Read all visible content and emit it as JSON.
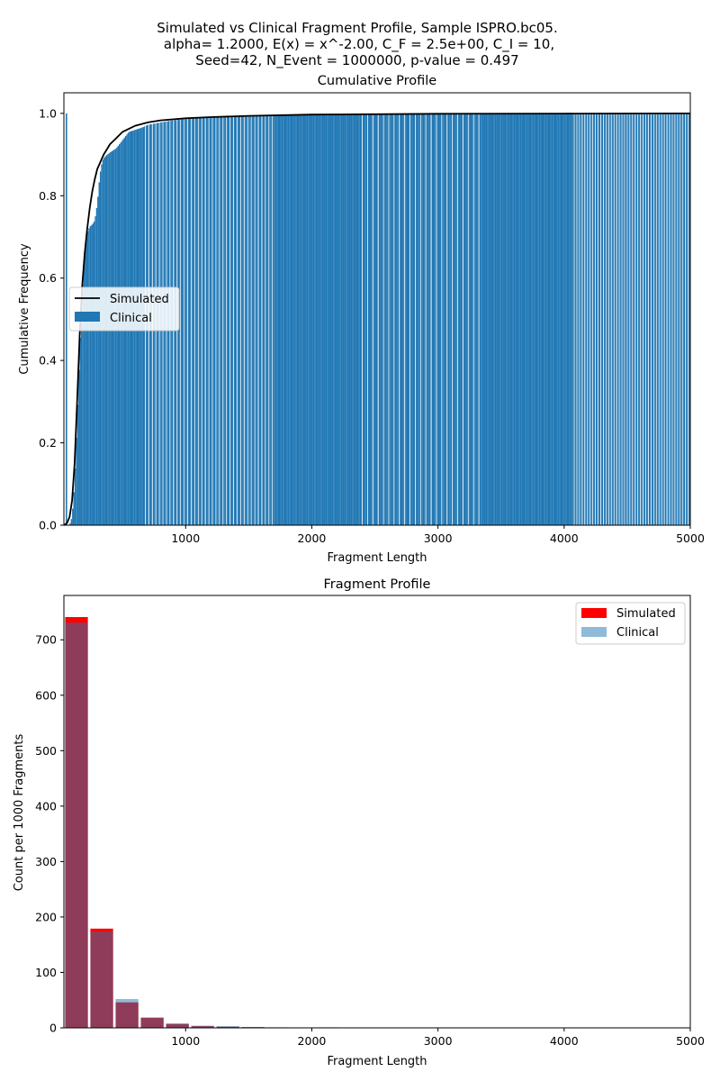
{
  "figure": {
    "suptitle": [
      "Simulated vs Clinical Fragment Profile, Sample ISPRO.bc05.",
      "alpha=  1.2000, E(x) = x^-2.00, C_F =  2.5e+00, C_I = 10,",
      "Seed=42, N_Event = 1000000, p-value = 0.497"
    ]
  },
  "colors": {
    "simulated_line": "#000000",
    "clinical_bar": "#1f77b4",
    "simulated_bar": "#ff0000",
    "clinical_bar_light": "#1f77b4"
  },
  "chart_data": [
    {
      "type": "bar",
      "title": "Cumulative Profile",
      "xlabel": "Fragment Length",
      "ylabel": "Cumulative Frequency",
      "xlim": [
        35,
        5000
      ],
      "ylim": [
        0,
        1.05
      ],
      "xticks": [
        "1000",
        "2000",
        "3000",
        "4000",
        "5000"
      ],
      "xtick_values": [
        1000,
        2000,
        3000,
        4000,
        5000
      ],
      "yticks": [
        "0.0",
        "0.2",
        "0.4",
        "0.6",
        "0.8",
        "1.0"
      ],
      "ytick_values": [
        0,
        0.2,
        0.4,
        0.6,
        0.8,
        1.0
      ],
      "legend": {
        "placement": "center-left",
        "entries": [
          "Simulated",
          "Clinical"
        ]
      },
      "series": [
        {
          "name": "Simulated",
          "kind": "line",
          "x": [
            35,
            60,
            80,
            100,
            120,
            140,
            160,
            180,
            200,
            220,
            240,
            260,
            280,
            300,
            350,
            400,
            450,
            500,
            600,
            700,
            800,
            1000,
            1200,
            1500,
            2000,
            3000,
            4000,
            5000
          ],
          "values": [
            0.0,
            0.005,
            0.02,
            0.06,
            0.15,
            0.3,
            0.46,
            0.58,
            0.66,
            0.72,
            0.77,
            0.81,
            0.84,
            0.865,
            0.9,
            0.925,
            0.94,
            0.955,
            0.97,
            0.978,
            0.983,
            0.988,
            0.991,
            0.994,
            0.997,
            0.999,
            0.9995,
            1.0
          ]
        },
        {
          "name": "Clinical",
          "kind": "bar",
          "x": [
            35,
            80,
            100,
            120,
            140,
            160,
            180,
            200,
            220,
            240,
            260,
            280,
            300,
            320,
            340,
            360,
            380,
            400,
            450,
            500,
            550,
            600,
            650,
            700,
            800,
            900,
            1000,
            1200,
            1500,
            2000,
            2500,
            3000,
            4000,
            4500,
            5000
          ],
          "values": [
            1.0,
            0.0,
            0.02,
            0.1,
            0.25,
            0.42,
            0.56,
            0.66,
            0.71,
            0.725,
            0.73,
            0.74,
            0.78,
            0.85,
            0.885,
            0.895,
            0.9,
            0.905,
            0.915,
            0.935,
            0.955,
            0.96,
            0.965,
            0.972,
            0.978,
            0.983,
            0.986,
            0.99,
            0.993,
            0.996,
            0.998,
            0.999,
            0.999,
            0.9995,
            1.0
          ]
        }
      ]
    },
    {
      "type": "bar",
      "title": "Fragment Profile",
      "xlabel": "Fragment Length",
      "ylabel": "Count per 1000 Fragments",
      "xlim": [
        35,
        5000
      ],
      "ylim": [
        0,
        780
      ],
      "xticks": [
        "1000",
        "2000",
        "3000",
        "4000",
        "5000"
      ],
      "xtick_values": [
        1000,
        2000,
        3000,
        4000,
        5000
      ],
      "yticks": [
        "0",
        "100",
        "200",
        "300",
        "400",
        "500",
        "600",
        "700"
      ],
      "ytick_values": [
        0,
        100,
        200,
        300,
        400,
        500,
        600,
        700
      ],
      "legend": {
        "placement": "top-right",
        "entries": [
          "Simulated",
          "Clinical"
        ]
      },
      "categories": [
        135,
        335,
        535,
        735,
        935,
        1135,
        1335,
        1535,
        1735,
        1935,
        2135,
        2335,
        2535
      ],
      "bar_width": 180,
      "series": [
        {
          "name": "Simulated",
          "values": [
            741,
            179,
            46,
            18,
            7,
            3,
            2,
            1.2,
            0.8,
            0.6,
            0.5,
            0.4,
            0.3
          ]
        },
        {
          "name": "Clinical",
          "values": [
            731,
            174,
            52,
            19,
            8,
            4,
            3,
            1.5,
            1,
            0.8,
            1,
            0.6,
            0.5
          ]
        }
      ]
    }
  ]
}
